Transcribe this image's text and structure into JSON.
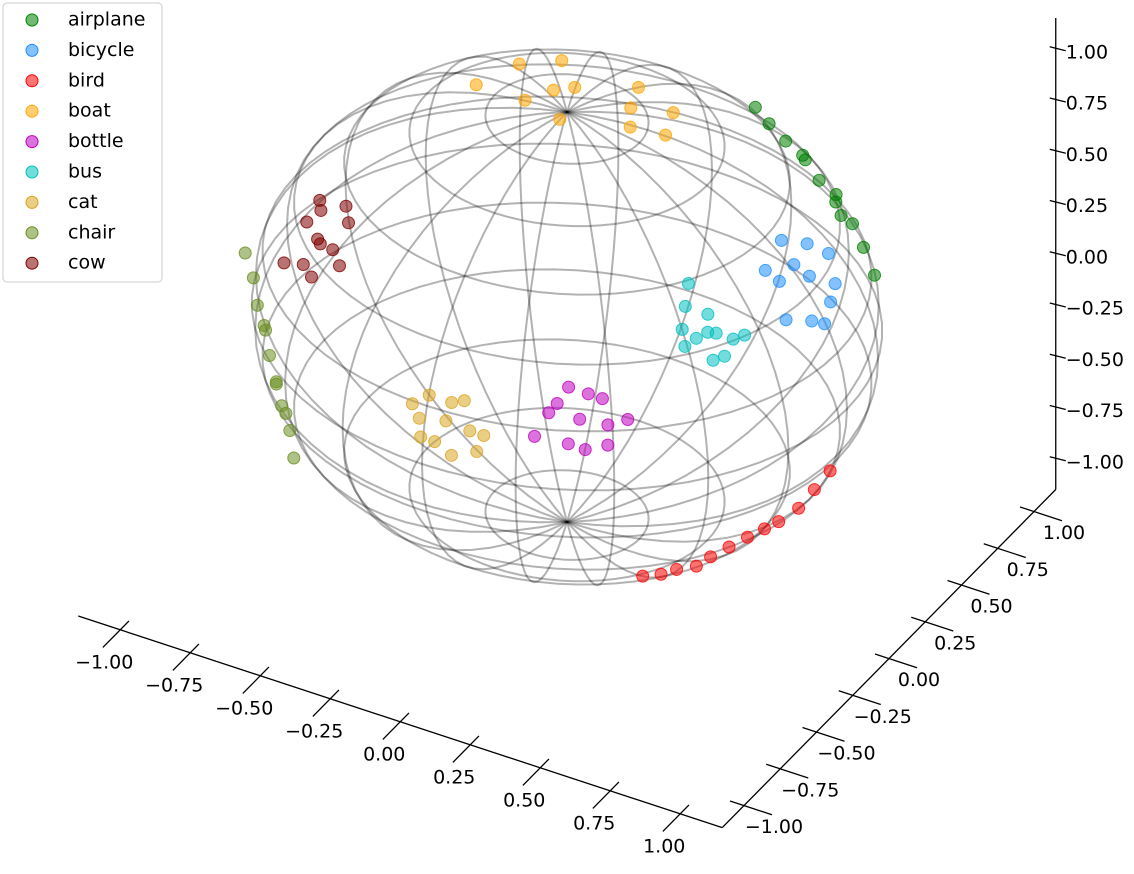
{
  "chart_data": {
    "type": "scatter3d",
    "legend": "upper left",
    "xlim": [
      -1.15,
      1.15
    ],
    "ylim": [
      -1.15,
      1.15
    ],
    "zlim": [
      -1.15,
      1.15
    ],
    "xticks": [
      {
        "value": -1,
        "label": "−1.00"
      },
      {
        "value": -0.75,
        "label": "−0.75"
      },
      {
        "value": -0.5,
        "label": "−0.50"
      },
      {
        "value": -0.25,
        "label": "−0.25"
      },
      {
        "value": 0,
        "label": "0.00"
      },
      {
        "value": 0.25,
        "label": "0.25"
      },
      {
        "value": 0.5,
        "label": "0.50"
      },
      {
        "value": 0.75,
        "label": "0.75"
      },
      {
        "value": 1,
        "label": "1.00"
      }
    ],
    "yticks": [
      {
        "value": -1,
        "label": "−1.00"
      },
      {
        "value": -0.75,
        "label": "−0.75"
      },
      {
        "value": -0.5,
        "label": "−0.50"
      },
      {
        "value": -0.25,
        "label": "−0.25"
      },
      {
        "value": 0,
        "label": "0.00"
      },
      {
        "value": 0.25,
        "label": "0.25"
      },
      {
        "value": 0.5,
        "label": "0.50"
      },
      {
        "value": 0.75,
        "label": "0.75"
      },
      {
        "value": 1,
        "label": "1.00"
      }
    ],
    "zticks": [
      {
        "value": -1,
        "label": "−1.00"
      },
      {
        "value": -0.75,
        "label": "−0.75"
      },
      {
        "value": -0.5,
        "label": "−0.50"
      },
      {
        "value": -0.25,
        "label": "−0.25"
      },
      {
        "value": 0,
        "label": "0.00"
      },
      {
        "value": 0.25,
        "label": "0.25"
      },
      {
        "value": 0.5,
        "label": "0.50"
      },
      {
        "value": 0.75,
        "label": "0.75"
      },
      {
        "value": 1,
        "label": "1.00"
      }
    ],
    "series": [
      {
        "name": "airplane",
        "color": "#008000",
        "x": [
          0.31,
          0.38,
          0.46,
          0.53,
          0.6,
          0.67,
          0.74,
          0.8,
          0.86,
          0.5,
          0.64,
          0.72
        ],
        "y": [
          0.7,
          0.66,
          0.62,
          0.62,
          0.58,
          0.56,
          0.54,
          0.5,
          0.46,
          0.66,
          0.62,
          0.5
        ],
        "z": [
          0.66,
          0.64,
          0.62,
          0.56,
          0.52,
          0.46,
          0.4,
          0.34,
          0.26,
          0.54,
          0.44,
          0.46
        ]
      },
      {
        "name": "bicycle",
        "color": "#1e90ff",
        "x": [
          0.84,
          0.78,
          0.9,
          0.8,
          0.88,
          0.74,
          0.92,
          0.82,
          0.86,
          0.76,
          0.9,
          0.8
        ],
        "y": [
          0.05,
          0.15,
          -0.05,
          -0.08,
          0.15,
          0.05,
          0.0,
          0.22,
          -0.15,
          -0.1,
          0.08,
          0.02
        ],
        "z": [
          0.54,
          0.6,
          0.42,
          0.59,
          0.45,
          0.67,
          0.38,
          0.52,
          0.48,
          0.64,
          0.42,
          0.6
        ]
      },
      {
        "name": "bird",
        "color": "#ff0000",
        "x": [
          0.95,
          0.93,
          0.91,
          0.87,
          0.84,
          0.8,
          0.76,
          0.72,
          0.69,
          0.64,
          0.6,
          0.55
        ],
        "y": [
          -0.02,
          -0.09,
          -0.16,
          -0.22,
          -0.26,
          -0.3,
          -0.35,
          -0.4,
          -0.44,
          -0.48,
          -0.51,
          -0.54
        ],
        "z": [
          -0.31,
          -0.36,
          -0.41,
          -0.45,
          -0.47,
          -0.5,
          -0.53,
          -0.56,
          -0.59,
          -0.6,
          -0.62,
          -0.63
        ]
      },
      {
        "name": "boat",
        "color": "#ffa500",
        "x": [
          -0.05,
          -0.3,
          0.2,
          -0.15,
          0.1,
          -0.35,
          0.25,
          0.0,
          -0.2,
          0.15,
          -0.1,
          0.3
        ],
        "y": [
          0.15,
          0.25,
          0.05,
          0.0,
          0.3,
          0.05,
          0.25,
          -0.05,
          0.35,
          0.15,
          0.1,
          0.1
        ],
        "z": [
          0.99,
          0.92,
          0.98,
          0.99,
          0.95,
          0.94,
          0.93,
          1.0,
          0.91,
          0.98,
          0.99,
          0.95
        ]
      },
      {
        "name": "bottle",
        "color": "#bf00bf",
        "x": [
          0.47,
          0.55,
          0.38,
          0.5,
          0.42,
          0.6,
          0.35,
          0.52,
          0.45,
          0.4,
          0.56,
          0.48
        ],
        "y": [
          -0.82,
          -0.78,
          -0.86,
          -0.84,
          -0.8,
          -0.74,
          -0.9,
          -0.76,
          -0.86,
          -0.84,
          -0.8,
          -0.78
        ],
        "z": [
          0.3,
          0.28,
          0.32,
          0.18,
          0.42,
          0.3,
          0.22,
          0.38,
          0.2,
          0.36,
          0.2,
          0.4
        ]
      },
      {
        "name": "bus",
        "color": "#00bfbf",
        "x": [
          0.72,
          0.78,
          0.66,
          0.7,
          0.76,
          0.64,
          0.8,
          0.68,
          0.74,
          0.7,
          0.62,
          0.78
        ],
        "y": [
          -0.42,
          -0.36,
          -0.48,
          -0.38,
          -0.46,
          -0.42,
          -0.32,
          -0.5,
          -0.4,
          -0.46,
          -0.36,
          -0.42
        ],
        "z": [
          0.55,
          0.5,
          0.58,
          0.6,
          0.46,
          0.64,
          0.5,
          0.52,
          0.54,
          0.54,
          0.7,
          0.46
        ]
      },
      {
        "name": "cat",
        "color": "#daa520",
        "x": [
          0.07,
          0.15,
          -0.02,
          0.1,
          0.0,
          0.18,
          -0.05,
          0.12,
          0.04,
          0.2,
          -0.01,
          0.08
        ],
        "y": [
          -0.97,
          -0.96,
          -0.98,
          -0.99,
          -0.95,
          -0.97,
          -0.97,
          -0.94,
          -0.99,
          -0.96,
          -0.99,
          -0.95
        ],
        "z": [
          0.22,
          0.2,
          0.2,
          0.08,
          0.3,
          0.12,
          0.25,
          0.32,
          0.12,
          0.2,
          0.12,
          0.3
        ]
      },
      {
        "name": "chair",
        "color": "#6b8e23",
        "x": [
          -0.52,
          -0.56,
          -0.61,
          -0.65,
          -0.7,
          -0.74,
          -0.79,
          -0.83,
          -0.88,
          -0.66,
          -0.74,
          -0.6
        ],
        "y": [
          -0.88,
          -0.83,
          -0.79,
          -0.75,
          -0.7,
          -0.65,
          -0.61,
          -0.56,
          -0.52,
          -0.73,
          -0.66,
          -0.78
        ],
        "z": [
          -0.29,
          -0.21,
          -0.14,
          -0.07,
          0.0,
          0.07,
          0.14,
          0.22,
          0.29,
          -0.1,
          0.1,
          -0.18
        ]
      },
      {
        "name": "cow",
        "color": "#800000",
        "x": [
          -0.58,
          -0.5,
          -0.66,
          -0.55,
          -0.62,
          -0.48,
          -0.7,
          -0.6,
          -0.52,
          -0.65,
          -0.56,
          -0.45
        ],
        "y": [
          -0.6,
          -0.65,
          -0.52,
          -0.7,
          -0.5,
          -0.58,
          -0.6,
          -0.66,
          -0.52,
          -0.45,
          -0.62,
          -0.7
        ],
        "z": [
          0.55,
          0.57,
          0.54,
          0.45,
          0.6,
          0.66,
          0.38,
          0.46,
          0.68,
          0.6,
          0.55,
          0.55
        ]
      }
    ]
  }
}
